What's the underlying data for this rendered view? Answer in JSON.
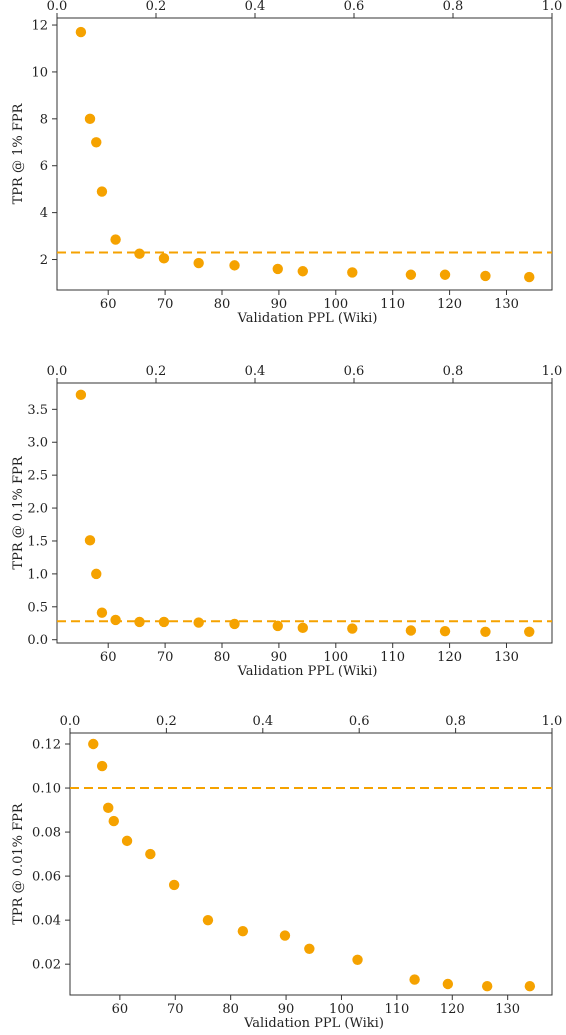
{
  "colors": {
    "points": "#f5a200",
    "reference_line": "#f5a200",
    "axes": "#333333",
    "background": "#ffffff"
  },
  "chart_data": [
    {
      "type": "scatter",
      "xlabel": "Validation PPL (Wiki)",
      "ylabel": "TPR @ 1% FPR",
      "xlim": [
        51,
        138
      ],
      "ylim": [
        0.7,
        12.3
      ],
      "xticks": [
        60,
        70,
        80,
        90,
        100,
        110,
        120,
        130
      ],
      "yticks": [
        2,
        4,
        6,
        8,
        10,
        12
      ],
      "ytick_labels": [
        "2",
        "4",
        "6",
        "8",
        "10",
        "12"
      ],
      "top_xticks": [
        0.0,
        0.2,
        0.4,
        0.6,
        0.8,
        1.0
      ],
      "top_xtick_labels": [
        "0.0",
        "0.2",
        "0.4",
        "0.6",
        "0.8",
        "1.0"
      ],
      "reference_y": 2.3,
      "grid": false,
      "x": [
        55.2,
        56.8,
        57.9,
        58.9,
        61.3,
        65.5,
        69.8,
        75.9,
        82.2,
        89.8,
        94.2,
        102.9,
        113.2,
        119.2,
        126.3,
        134.0
      ],
      "y": [
        11.7,
        8.0,
        7.0,
        4.9,
        2.85,
        2.25,
        2.05,
        1.85,
        1.75,
        1.6,
        1.5,
        1.45,
        1.35,
        1.35,
        1.3,
        1.25
      ]
    },
    {
      "type": "scatter",
      "xlabel": "Validation PPL (Wiki)",
      "ylabel": "TPR @ 0.1% FPR",
      "xlim": [
        51,
        138
      ],
      "ylim": [
        -0.05,
        3.9
      ],
      "xticks": [
        60,
        70,
        80,
        90,
        100,
        110,
        120,
        130
      ],
      "yticks": [
        0.0,
        0.5,
        1.0,
        1.5,
        2.0,
        2.5,
        3.0,
        3.5
      ],
      "ytick_labels": [
        "0.0",
        "0.5",
        "1.0",
        "1.5",
        "2.0",
        "2.5",
        "3.0",
        "3.5"
      ],
      "top_xticks": [
        0.0,
        0.2,
        0.4,
        0.6,
        0.8,
        1.0
      ],
      "top_xtick_labels": [
        "0.0",
        "0.2",
        "0.4",
        "0.6",
        "0.8",
        "1.0"
      ],
      "reference_y": 0.28,
      "grid": false,
      "x": [
        55.2,
        56.8,
        57.9,
        58.9,
        61.3,
        65.5,
        69.8,
        75.9,
        82.2,
        89.8,
        94.2,
        102.9,
        113.2,
        119.2,
        126.3,
        134.0
      ],
      "y": [
        3.72,
        1.51,
        1.0,
        0.41,
        0.3,
        0.27,
        0.27,
        0.26,
        0.24,
        0.21,
        0.18,
        0.17,
        0.14,
        0.13,
        0.12,
        0.12
      ]
    },
    {
      "type": "scatter",
      "xlabel": "Validation PPL (Wiki)",
      "ylabel": "TPR @ 0.01% FPR",
      "xlim": [
        51,
        138
      ],
      "ylim": [
        0.006,
        0.125
      ],
      "xticks": [
        60,
        70,
        80,
        90,
        100,
        110,
        120,
        130
      ],
      "yticks": [
        0.02,
        0.04,
        0.06,
        0.08,
        0.1,
        0.12
      ],
      "ytick_labels": [
        "0.02",
        "0.04",
        "0.06",
        "0.08",
        "0.10",
        "0.12"
      ],
      "top_xticks": [
        0.0,
        0.2,
        0.4,
        0.6,
        0.8,
        1.0
      ],
      "top_xtick_labels": [
        "0.0",
        "0.2",
        "0.4",
        "0.6",
        "0.8",
        "1.0"
      ],
      "reference_y": 0.1,
      "grid": false,
      "x": [
        55.2,
        56.8,
        57.9,
        58.9,
        61.3,
        65.5,
        69.8,
        75.9,
        82.2,
        89.8,
        94.2,
        102.9,
        113.2,
        119.2,
        126.3,
        134.0
      ],
      "y": [
        0.12,
        0.11,
        0.091,
        0.085,
        0.076,
        0.07,
        0.056,
        0.04,
        0.035,
        0.033,
        0.027,
        0.022,
        0.013,
        0.011,
        0.01,
        0.01
      ]
    }
  ]
}
